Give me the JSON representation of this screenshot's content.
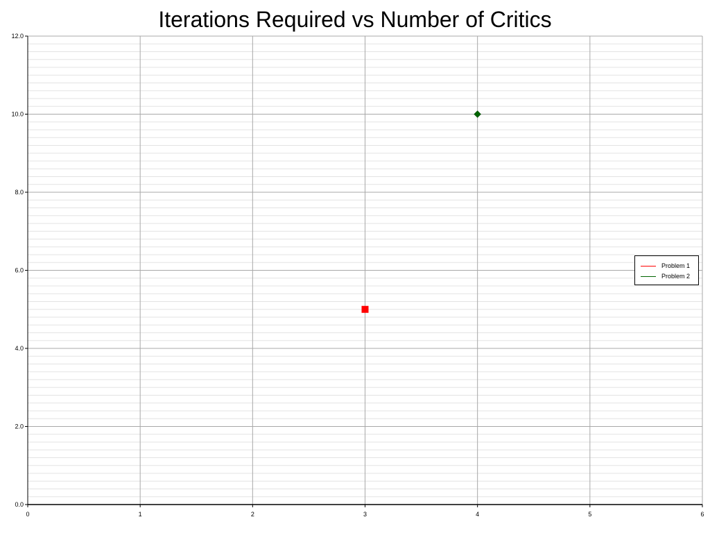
{
  "chart_data": {
    "type": "scatter",
    "title": "Iterations Required vs Number of Critics",
    "xlabel": "",
    "ylabel": "",
    "xlim": [
      0,
      6
    ],
    "ylim": [
      0,
      12
    ],
    "x_ticks": [
      "0",
      "1",
      "2",
      "3",
      "4",
      "5",
      "6"
    ],
    "y_ticks": [
      "0.0",
      "2.0",
      "4.0",
      "6.0",
      "8.0",
      "10.0",
      "12.0"
    ],
    "grid": true,
    "legend_position": "right",
    "series": [
      {
        "name": "Problem 1",
        "color": "#ff0000",
        "marker": "square",
        "points": [
          {
            "x": 3,
            "y": 5
          }
        ]
      },
      {
        "name": "Problem 2",
        "color": "#006400",
        "marker": "diamond",
        "points": [
          {
            "x": 4,
            "y": 10
          }
        ]
      }
    ]
  }
}
